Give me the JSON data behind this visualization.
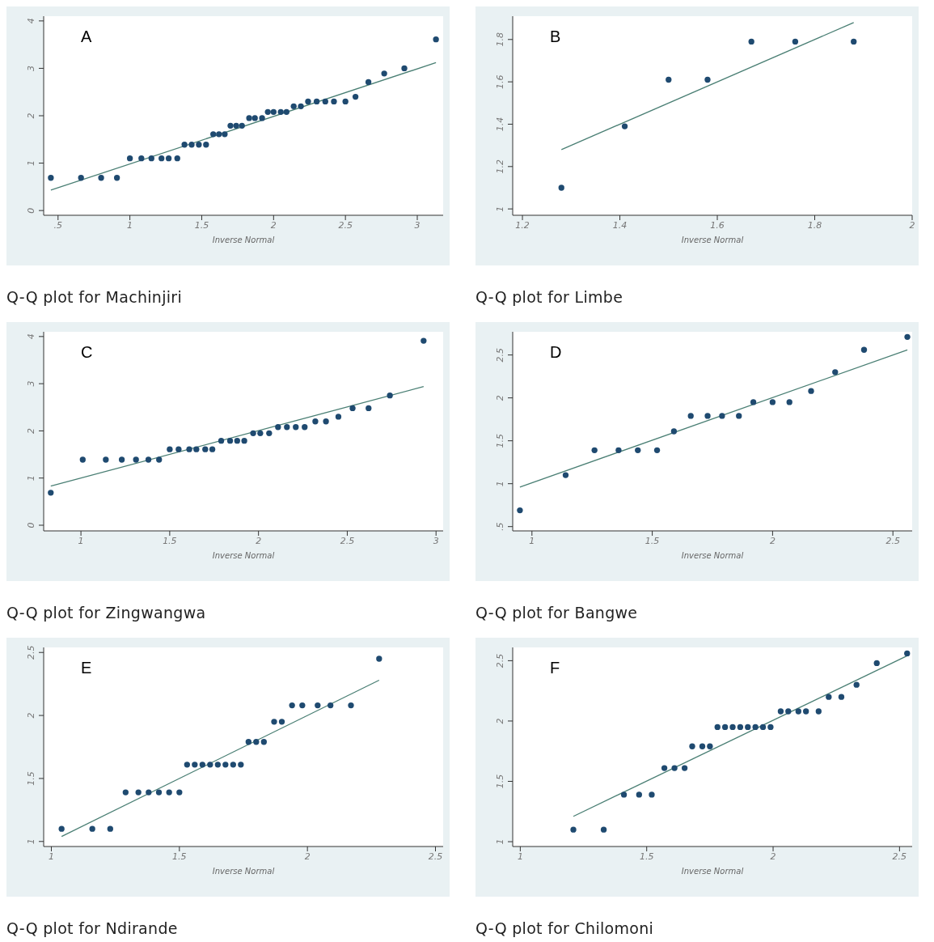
{
  "chart_data": [
    {
      "type": "scatter",
      "title": "Q-Q plot for Machinjiri",
      "annotations": [
        "A"
      ],
      "xlabel": "Inverse Normal",
      "xlim": [
        0.4,
        3.18
      ],
      "ylim": [
        -0.1,
        4.1
      ],
      "xticks": [
        {
          "value": 0.5,
          "label": ".5"
        },
        1,
        1.5,
        2,
        2.5,
        3
      ],
      "yticks": [
        0,
        1,
        2,
        3,
        4
      ],
      "series": [
        {
          "marker": "circle",
          "color": "#1f4a70",
          "x": [
            0.45,
            0.66,
            0.8,
            0.91,
            1.0,
            1.08,
            1.15,
            1.22,
            1.27,
            1.33,
            1.38,
            1.43,
            1.48,
            1.53,
            1.58,
            1.62,
            1.66,
            1.7,
            1.74,
            1.78,
            1.83,
            1.87,
            1.92,
            1.96,
            2.0,
            2.05,
            2.09,
            2.14,
            2.19,
            2.24,
            2.3,
            2.36,
            2.42,
            2.5,
            2.57,
            2.66,
            2.77,
            2.91,
            3.13
          ],
          "values": [
            0.69,
            0.69,
            0.69,
            0.69,
            1.1,
            1.1,
            1.1,
            1.1,
            1.1,
            1.1,
            1.39,
            1.39,
            1.39,
            1.39,
            1.61,
            1.61,
            1.61,
            1.79,
            1.79,
            1.79,
            1.95,
            1.95,
            1.95,
            2.08,
            2.08,
            2.08,
            2.08,
            2.2,
            2.2,
            2.3,
            2.3,
            2.3,
            2.3,
            2.3,
            2.4,
            2.71,
            2.89,
            3.0,
            3.61
          ]
        },
        {
          "type": "line",
          "color": "#4a7f74",
          "x": [
            0.45,
            3.13
          ],
          "values": [
            0.43,
            3.12
          ]
        }
      ]
    },
    {
      "type": "scatter",
      "title": "Q-Q plot for Limbe",
      "annotations": [
        "B"
      ],
      "xlabel": "Inverse Normal",
      "xlim": [
        1.18,
        2.0
      ],
      "ylim": [
        0.97,
        1.91
      ],
      "xticks": [
        1.2,
        1.4,
        1.6,
        1.8,
        2
      ],
      "yticks": [
        1,
        1.2,
        1.4,
        1.6,
        1.8
      ],
      "series": [
        {
          "marker": "circle",
          "color": "#1f4a70",
          "x": [
            1.28,
            1.41,
            1.5,
            1.58,
            1.67,
            1.76,
            1.88
          ],
          "values": [
            1.1,
            1.39,
            1.61,
            1.61,
            1.79,
            1.79,
            1.79
          ]
        },
        {
          "type": "line",
          "color": "#4a7f74",
          "x": [
            1.28,
            1.88
          ],
          "values": [
            1.28,
            1.88
          ]
        }
      ]
    },
    {
      "type": "scatter",
      "title": "Q-Q plot for Zingwangwa",
      "annotations": [
        "C"
      ],
      "xlabel": "Inverse Normal",
      "xlim": [
        0.79,
        3.04
      ],
      "ylim": [
        -0.12,
        4.1
      ],
      "xticks": [
        1,
        1.5,
        2,
        2.5,
        3
      ],
      "yticks": [
        0,
        1,
        2,
        3,
        4
      ],
      "series": [
        {
          "marker": "circle",
          "color": "#1f4a70",
          "x": [
            0.83,
            1.01,
            1.14,
            1.23,
            1.31,
            1.38,
            1.44,
            1.5,
            1.55,
            1.61,
            1.65,
            1.7,
            1.74,
            1.79,
            1.84,
            1.88,
            1.92,
            1.97,
            2.01,
            2.06,
            2.11,
            2.16,
            2.21,
            2.26,
            2.32,
            2.38,
            2.45,
            2.53,
            2.62,
            2.74,
            2.93
          ],
          "values": [
            0.69,
            1.39,
            1.39,
            1.39,
            1.39,
            1.39,
            1.39,
            1.61,
            1.61,
            1.61,
            1.61,
            1.61,
            1.61,
            1.79,
            1.79,
            1.79,
            1.79,
            1.95,
            1.95,
            1.95,
            2.08,
            2.08,
            2.08,
            2.08,
            2.2,
            2.2,
            2.3,
            2.48,
            2.48,
            2.75,
            3.91
          ]
        },
        {
          "type": "line",
          "color": "#4a7f74",
          "x": [
            0.83,
            2.93
          ],
          "values": [
            0.83,
            2.94
          ]
        }
      ]
    },
    {
      "type": "scatter",
      "title": "Q-Q plot for Bangwe",
      "annotations": [
        "D"
      ],
      "xlabel": "Inverse Normal",
      "xlim": [
        0.92,
        2.58
      ],
      "ylim": [
        0.45,
        2.77
      ],
      "xticks": [
        1,
        1.5,
        2,
        2.5
      ],
      "yticks": [
        {
          "value": 0.5,
          "label": ".5"
        },
        1,
        1.5,
        2,
        2.5
      ],
      "series": [
        {
          "marker": "circle",
          "color": "#1f4a70",
          "x": [
            0.95,
            1.14,
            1.26,
            1.36,
            1.44,
            1.52,
            1.59,
            1.66,
            1.73,
            1.79,
            1.86,
            1.92,
            2.0,
            2.07,
            2.16,
            2.26,
            2.38,
            2.56
          ],
          "values": [
            0.69,
            1.1,
            1.39,
            1.39,
            1.39,
            1.39,
            1.61,
            1.79,
            1.79,
            1.79,
            1.79,
            1.95,
            1.95,
            1.95,
            2.08,
            2.3,
            2.56,
            2.71
          ]
        },
        {
          "type": "line",
          "color": "#4a7f74",
          "x": [
            0.95,
            2.56
          ],
          "values": [
            0.96,
            2.56
          ]
        }
      ]
    },
    {
      "type": "scatter",
      "title": "Q-Q plot for Ndirande",
      "annotations": [
        "E"
      ],
      "xlabel": "Inverse Normal",
      "xlim": [
        0.97,
        2.53
      ],
      "ylim": [
        0.96,
        2.54
      ],
      "xticks": [
        1,
        1.5,
        2,
        2.5
      ],
      "yticks": [
        1,
        1.5,
        2,
        2.5
      ],
      "series": [
        {
          "marker": "circle",
          "color": "#1f4a70",
          "x": [
            1.04,
            1.16,
            1.23,
            1.29,
            1.34,
            1.38,
            1.42,
            1.46,
            1.5,
            1.53,
            1.56,
            1.59,
            1.62,
            1.65,
            1.68,
            1.71,
            1.74,
            1.77,
            1.8,
            1.83,
            1.87,
            1.9,
            1.94,
            1.98,
            2.04,
            2.09,
            2.17,
            2.28
          ],
          "values": [
            1.1,
            1.1,
            1.1,
            1.39,
            1.39,
            1.39,
            1.39,
            1.39,
            1.39,
            1.61,
            1.61,
            1.61,
            1.61,
            1.61,
            1.61,
            1.61,
            1.61,
            1.79,
            1.79,
            1.79,
            1.95,
            1.95,
            2.08,
            2.08,
            2.08,
            2.08,
            2.08,
            2.45
          ]
        },
        {
          "type": "line",
          "color": "#4a7f74",
          "x": [
            1.04,
            2.28
          ],
          "values": [
            1.04,
            2.28
          ]
        }
      ]
    },
    {
      "type": "scatter",
      "title": "Q-Q plot for Chilomoni",
      "annotations": [
        "F"
      ],
      "xlabel": "Inverse Normal",
      "xlim": [
        0.97,
        2.55
      ],
      "ylim": [
        0.96,
        2.61
      ],
      "xticks": [
        1,
        1.5,
        2,
        2.5
      ],
      "yticks": [
        1,
        1.5,
        2,
        2.5
      ],
      "series": [
        {
          "marker": "circle",
          "color": "#1f4a70",
          "x": [
            1.21,
            1.33,
            1.41,
            1.47,
            1.52,
            1.57,
            1.61,
            1.65,
            1.68,
            1.72,
            1.75,
            1.78,
            1.81,
            1.84,
            1.87,
            1.9,
            1.93,
            1.96,
            1.99,
            2.03,
            2.06,
            2.1,
            2.13,
            2.18,
            2.22,
            2.27,
            2.33,
            2.41,
            2.53
          ],
          "values": [
            1.1,
            1.1,
            1.39,
            1.39,
            1.39,
            1.61,
            1.61,
            1.61,
            1.79,
            1.79,
            1.79,
            1.95,
            1.95,
            1.95,
            1.95,
            1.95,
            1.95,
            1.95,
            1.95,
            2.08,
            2.08,
            2.08,
            2.08,
            2.08,
            2.2,
            2.2,
            2.3,
            2.48,
            2.56
          ]
        },
        {
          "type": "line",
          "color": "#4a7f74",
          "x": [
            1.21,
            2.53
          ],
          "values": [
            1.21,
            2.54
          ]
        }
      ]
    }
  ]
}
